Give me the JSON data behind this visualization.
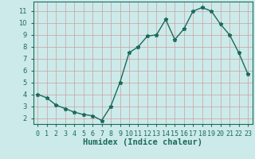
{
  "xlabel": "Humidex (Indice chaleur)",
  "x": [
    0,
    1,
    2,
    3,
    4,
    5,
    6,
    7,
    8,
    9,
    10,
    11,
    12,
    13,
    14,
    15,
    16,
    17,
    18,
    19,
    20,
    21,
    22,
    23
  ],
  "y": [
    4.0,
    3.7,
    3.1,
    2.8,
    2.5,
    2.3,
    2.2,
    1.8,
    3.0,
    5.0,
    7.5,
    8.0,
    8.9,
    9.0,
    10.3,
    8.6,
    9.5,
    11.0,
    11.3,
    11.0,
    9.9,
    9.0,
    7.5,
    5.7
  ],
  "line_color": "#1a6b5a",
  "marker": "*",
  "marker_size": 3.5,
  "background_color": "#cdeaea",
  "grid_color": "#c8a0a0",
  "ylim": [
    1.5,
    11.8
  ],
  "xlim": [
    -0.5,
    23.5
  ],
  "yticks": [
    2,
    3,
    4,
    5,
    6,
    7,
    8,
    9,
    10,
    11
  ],
  "xtick_labels": [
    "0",
    "1",
    "2",
    "3",
    "4",
    "5",
    "6",
    "7",
    "8",
    "9",
    "10",
    "11",
    "12",
    "13",
    "14",
    "15",
    "16",
    "17",
    "18",
    "19",
    "20",
    "21",
    "22",
    "23"
  ],
  "tick_fontsize": 6,
  "xlabel_fontsize": 7.5,
  "line_width": 1.0
}
